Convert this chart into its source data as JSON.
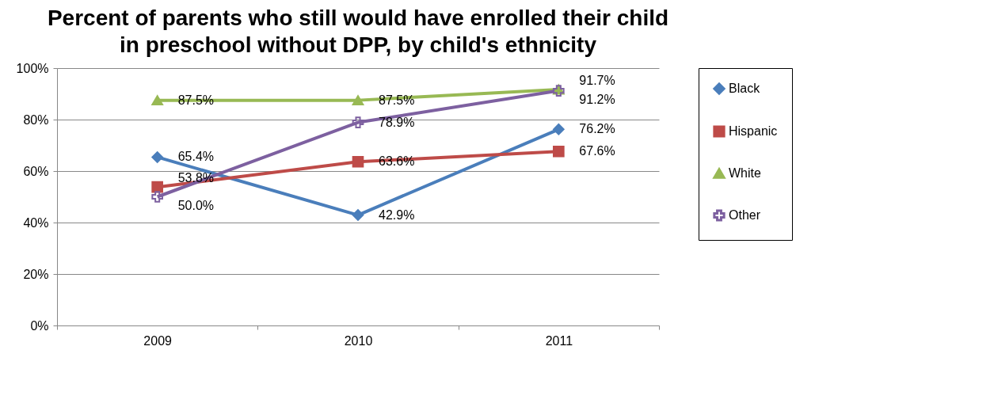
{
  "chart_data": {
    "type": "line",
    "title": "Percent of parents who still would have enrolled their child in preschool without DPP, by child's ethnicity",
    "categories": [
      "2009",
      "2010",
      "2011"
    ],
    "series": [
      {
        "name": "Black",
        "color": "#4a7ebb",
        "marker": "diamond",
        "values": [
          65.4,
          42.9,
          76.2
        ],
        "value_labels": [
          "65.4%",
          "42.9%",
          "76.2%"
        ]
      },
      {
        "name": "Hispanic",
        "color": "#be4b48",
        "marker": "square",
        "values": [
          53.8,
          63.6,
          67.6
        ],
        "value_labels": [
          "53.8%",
          "63.6%",
          "67.6%"
        ]
      },
      {
        "name": "White",
        "color": "#98b954",
        "marker": "triangle",
        "values": [
          87.5,
          87.5,
          91.7
        ],
        "value_labels": [
          "87.5%",
          "87.5%",
          "91.7%"
        ]
      },
      {
        "name": "Other",
        "color": "#7d60a0",
        "marker": "cross",
        "values": [
          50.0,
          78.9,
          91.2
        ],
        "value_labels": [
          "50.0%",
          "78.9%",
          "91.2%"
        ]
      }
    ],
    "ylim": [
      0,
      100
    ],
    "yticks": [
      {
        "value": 0,
        "label": "0%"
      },
      {
        "value": 20,
        "label": "20%"
      },
      {
        "value": 40,
        "label": "40%"
      },
      {
        "value": 60,
        "label": "60%"
      },
      {
        "value": 80,
        "label": "80%"
      },
      {
        "value": 100,
        "label": "100%"
      }
    ],
    "grid": "y",
    "legend": "right"
  }
}
